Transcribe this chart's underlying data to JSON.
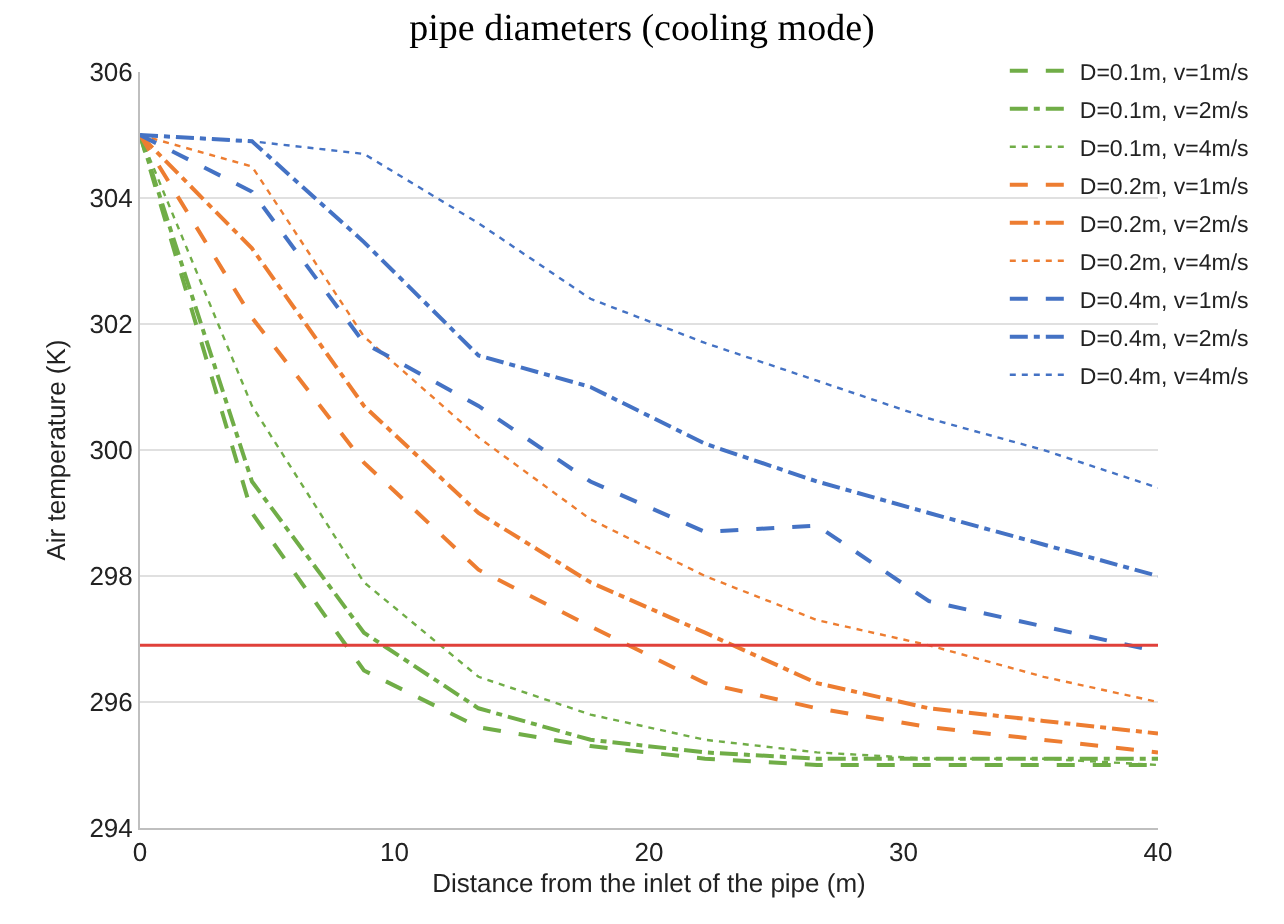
{
  "chart_data": {
    "type": "line",
    "title": "pipe diameters (cooling mode)",
    "xlabel": "Distance from the inlet of the pipe (m)",
    "ylabel": "Air temperature (K)",
    "x": [
      0,
      4.4,
      8.8,
      13.3,
      17.7,
      22.2,
      26.6,
      31,
      35.5,
      40
    ],
    "series": [
      {
        "name": "D=0.1m, v=1m/s",
        "color": "#70ad47",
        "line_style": "dashed",
        "values": [
          305,
          299.0,
          296.5,
          295.6,
          295.3,
          295.1,
          295.0,
          295.0,
          295.0,
          295.0
        ]
      },
      {
        "name": "D=0.1m, v=2m/s",
        "color": "#70ad47",
        "line_style": "dashdot",
        "values": [
          305,
          299.5,
          297.1,
          295.9,
          295.4,
          295.2,
          295.1,
          295.1,
          295.1,
          295.1
        ]
      },
      {
        "name": "D=0.1m, v=4m/s",
        "color": "#70ad47",
        "line_style": "dotted",
        "values": [
          305,
          300.7,
          297.9,
          296.4,
          295.8,
          295.4,
          295.2,
          295.1,
          295.1,
          295.0
        ]
      },
      {
        "name": "D=0.2m, v=1m/s",
        "color": "#ed7d31",
        "line_style": "dashed",
        "values": [
          305,
          302.1,
          299.8,
          298.1,
          297.2,
          296.3,
          295.9,
          295.6,
          295.4,
          295.2
        ]
      },
      {
        "name": "D=0.2m, v=2m/s",
        "color": "#ed7d31",
        "line_style": "dashdot",
        "values": [
          305,
          303.2,
          300.7,
          299.0,
          297.9,
          297.1,
          296.3,
          295.9,
          295.7,
          295.5
        ]
      },
      {
        "name": "D=0.2m, v=4m/s",
        "color": "#ed7d31",
        "line_style": "dotted",
        "values": [
          305,
          304.5,
          301.8,
          300.2,
          298.9,
          298.0,
          297.3,
          296.9,
          296.4,
          296.0
        ]
      },
      {
        "name": "D=0.4m, v=1m/s",
        "color": "#4472c4",
        "line_style": "dashed",
        "values": [
          305,
          304.1,
          301.7,
          300.7,
          299.5,
          298.7,
          298.8,
          297.6,
          297.2,
          296.8
        ]
      },
      {
        "name": "D=0.4m, v=2m/s",
        "color": "#4472c4",
        "line_style": "dashdot",
        "values": [
          305,
          304.9,
          303.3,
          301.5,
          301.0,
          300.1,
          299.5,
          299.0,
          298.5,
          298.0
        ]
      },
      {
        "name": "D=0.4m, v=4m/s",
        "color": "#4472c4",
        "line_style": "dotted",
        "values": [
          305,
          304.9,
          304.7,
          303.6,
          302.4,
          301.7,
          301.1,
          300.5,
          300.0,
          299.4
        ]
      }
    ],
    "ref_lines": [
      {
        "axis": "y",
        "value": 296.9,
        "color": "#e0403a",
        "line_style": "solid"
      }
    ],
    "xlim": [
      0,
      40
    ],
    "xticks": [
      0,
      10,
      20,
      30,
      40
    ],
    "ylim": [
      294,
      306
    ],
    "yticks": [
      294,
      296,
      298,
      300,
      302,
      304,
      306
    ],
    "grid": "y",
    "legend": "top right",
    "marker": "none"
  }
}
